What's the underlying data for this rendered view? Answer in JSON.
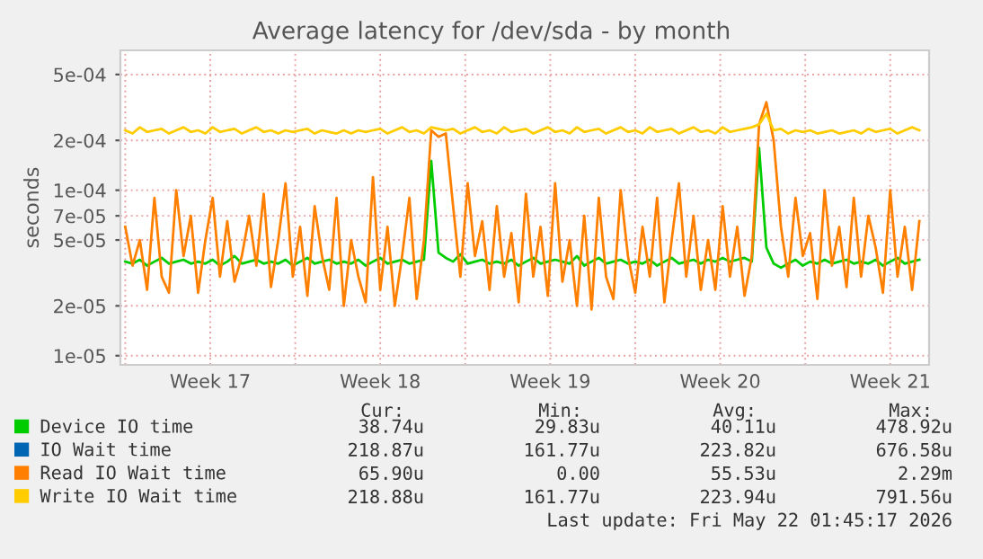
{
  "chart_data": {
    "type": "line",
    "title": "Average latency for /dev/sda - by month",
    "ylabel": "seconds",
    "log": "y",
    "grid": true,
    "legend": "bottom",
    "marker": "none",
    "line_style": "solid",
    "xlim": [
      "2026-04-19T19:12",
      "2026-05-23T02:24"
    ],
    "ylim": [
      8.8e-06,
      0.0007
    ],
    "xticks": [
      {
        "value": "2026-04-20",
        "label": null
      },
      {
        "value": "2026-04-23T12:00",
        "label": "Week 17"
      },
      {
        "value": "2026-04-27",
        "label": null
      },
      {
        "value": "2026-04-30T12:00",
        "label": "Week 18"
      },
      {
        "value": "2026-05-04",
        "label": null
      },
      {
        "value": "2026-05-07T12:00",
        "label": "Week 19"
      },
      {
        "value": "2026-05-11",
        "label": null
      },
      {
        "value": "2026-05-14T12:00",
        "label": "Week 20"
      },
      {
        "value": "2026-05-18",
        "label": null
      },
      {
        "value": "2026-05-21T12:00",
        "label": "Week 21"
      }
    ],
    "yticks": [
      {
        "value": 1e-05,
        "label": "1e-05"
      },
      {
        "value": 2e-05,
        "label": "2e-05"
      },
      {
        "value": 5e-05,
        "label": "5e-05"
      },
      {
        "value": 7e-05,
        "label": "7e-05"
      },
      {
        "value": 0.0001,
        "label": "1e-04"
      },
      {
        "value": 0.0002,
        "label": "2e-04"
      },
      {
        "value": 0.0005,
        "label": "5e-04"
      }
    ],
    "x": [
      "2026-04-20T00:00",
      "2026-04-20T07:12",
      "2026-04-20T14:24",
      "2026-04-20T21:36",
      "2026-04-21T04:48",
      "2026-04-21T12:00",
      "2026-04-21T19:12",
      "2026-04-22T02:24",
      "2026-04-22T09:36",
      "2026-04-22T16:48",
      "2026-04-23T00:00",
      "2026-04-23T07:12",
      "2026-04-23T14:24",
      "2026-04-23T21:36",
      "2026-04-24T04:48",
      "2026-04-24T12:00",
      "2026-04-24T19:12",
      "2026-04-25T02:24",
      "2026-04-25T09:36",
      "2026-04-25T16:48",
      "2026-04-26T00:00",
      "2026-04-26T07:12",
      "2026-04-26T14:24",
      "2026-04-26T21:36",
      "2026-04-27T04:48",
      "2026-04-27T12:00",
      "2026-04-27T19:12",
      "2026-04-28T02:24",
      "2026-04-28T09:36",
      "2026-04-28T16:48",
      "2026-04-29T00:00",
      "2026-04-29T07:12",
      "2026-04-29T14:24",
      "2026-04-29T21:36",
      "2026-04-30T04:48",
      "2026-04-30T12:00",
      "2026-04-30T19:12",
      "2026-05-01T02:24",
      "2026-05-01T09:36",
      "2026-05-01T16:48",
      "2026-05-02T00:00",
      "2026-05-02T07:12",
      "2026-05-02T14:24",
      "2026-05-02T21:36",
      "2026-05-03T04:48",
      "2026-05-03T12:00",
      "2026-05-03T19:12",
      "2026-05-04T02:24",
      "2026-05-04T09:36",
      "2026-05-04T16:48",
      "2026-05-05T00:00",
      "2026-05-05T07:12",
      "2026-05-05T14:24",
      "2026-05-05T21:36",
      "2026-05-06T04:48",
      "2026-05-06T12:00",
      "2026-05-06T19:12",
      "2026-05-07T02:24",
      "2026-05-07T09:36",
      "2026-05-07T16:48",
      "2026-05-08T00:00",
      "2026-05-08T07:12",
      "2026-05-08T14:24",
      "2026-05-08T21:36",
      "2026-05-09T04:48",
      "2026-05-09T12:00",
      "2026-05-09T19:12",
      "2026-05-10T02:24",
      "2026-05-10T09:36",
      "2026-05-10T16:48",
      "2026-05-11T00:00",
      "2026-05-11T07:12",
      "2026-05-11T14:24",
      "2026-05-11T21:36",
      "2026-05-12T04:48",
      "2026-05-12T12:00",
      "2026-05-12T19:12",
      "2026-05-13T02:24",
      "2026-05-13T09:36",
      "2026-05-13T16:48",
      "2026-05-14T00:00",
      "2026-05-14T07:12",
      "2026-05-14T14:24",
      "2026-05-14T21:36",
      "2026-05-15T04:48",
      "2026-05-15T12:00",
      "2026-05-15T19:12",
      "2026-05-16T02:24",
      "2026-05-16T09:36",
      "2026-05-16T16:48",
      "2026-05-17T00:00",
      "2026-05-17T07:12",
      "2026-05-17T14:24",
      "2026-05-17T21:36",
      "2026-05-18T04:48",
      "2026-05-18T12:00",
      "2026-05-18T19:12",
      "2026-05-19T02:24",
      "2026-05-19T09:36",
      "2026-05-19T16:48",
      "2026-05-20T00:00",
      "2026-05-20T07:12",
      "2026-05-20T14:24",
      "2026-05-20T21:36",
      "2026-05-21T04:48",
      "2026-05-21T12:00",
      "2026-05-21T19:12",
      "2026-05-22T02:24",
      "2026-05-22T09:36",
      "2026-05-22T16:48"
    ],
    "series": [
      {
        "name": "Device IO time",
        "color": "#00cc00",
        "values": [
          3.7e-05,
          3.6e-05,
          3.8e-05,
          3.5e-05,
          3.7e-05,
          3.9e-05,
          3.6e-05,
          3.7e-05,
          3.8e-05,
          3.6e-05,
          3.7e-05,
          3.6e-05,
          3.8e-05,
          3.5e-05,
          3.7e-05,
          4e-05,
          3.6e-05,
          3.7e-05,
          3.8e-05,
          3.6e-05,
          3.7e-05,
          3.6e-05,
          3.8e-05,
          3.5e-05,
          3.7e-05,
          3.9e-05,
          3.6e-05,
          3.7e-05,
          3.8e-05,
          3.6e-05,
          3.7e-05,
          3.6e-05,
          3.8e-05,
          3.5e-05,
          3.7e-05,
          3.9e-05,
          3.6e-05,
          3.7e-05,
          3.8e-05,
          3.6e-05,
          3.7e-05,
          3.8e-05,
          0.00015,
          4.2e-05,
          3.9e-05,
          3.7e-05,
          4.1e-05,
          3.6e-05,
          3.7e-05,
          3.8e-05,
          3.6e-05,
          3.7e-05,
          3.6e-05,
          3.8e-05,
          3.5e-05,
          3.7e-05,
          3.9e-05,
          3.6e-05,
          3.7e-05,
          3.8e-05,
          3.7e-05,
          3.6e-05,
          4e-05,
          3.5e-05,
          3.7e-05,
          3.9e-05,
          3.6e-05,
          3.7e-05,
          3.8e-05,
          3.6e-05,
          3.7e-05,
          3.6e-05,
          3.8e-05,
          3.5e-05,
          3.7e-05,
          3.9e-05,
          3.6e-05,
          3.7e-05,
          3.8e-05,
          3.6e-05,
          3.8e-05,
          3.7e-05,
          3.9e-05,
          3.7e-05,
          3.8e-05,
          3.9e-05,
          3.7e-05,
          0.00018,
          4.5e-05,
          3.6e-05,
          3.4e-05,
          3.6e-05,
          3.8e-05,
          3.5e-05,
          3.7e-05,
          3.6e-05,
          3.8e-05,
          3.6e-05,
          3.7e-05,
          3.8e-05,
          3.6e-05,
          3.7e-05,
          3.6e-05,
          3.8e-05,
          3.5e-05,
          3.7e-05,
          3.9e-05,
          3.6e-05,
          3.7e-05,
          3.8e-05
        ]
      },
      {
        "name": "IO Wait time",
        "color": "#0066b3",
        "values": [
          null,
          null,
          null,
          null,
          null,
          null,
          null,
          null,
          null,
          null,
          null,
          null,
          null,
          null,
          null,
          null,
          null,
          null,
          null,
          null,
          null,
          null,
          null,
          null,
          null,
          null,
          null,
          null,
          null,
          null,
          null,
          null,
          null,
          null,
          null,
          null,
          null,
          null,
          null,
          null,
          null,
          null,
          null,
          null,
          null,
          null,
          null,
          null,
          null,
          null,
          null,
          null,
          null,
          null,
          null,
          null,
          null,
          null,
          null,
          null,
          null,
          null,
          null,
          null,
          null,
          null,
          null,
          null,
          null,
          null,
          null,
          null,
          null,
          null,
          null,
          null,
          null,
          null,
          null,
          null,
          null,
          null,
          null,
          null,
          null,
          null,
          null,
          null,
          null,
          null,
          null,
          null,
          null,
          null,
          null,
          null,
          null,
          null,
          null,
          null,
          null,
          null,
          null,
          null,
          null,
          null,
          null,
          null,
          null,
          null
        ]
      },
      {
        "name": "Read IO Wait time",
        "color": "#ff8000",
        "values": [
          6e-05,
          3.5e-05,
          5e-05,
          2.5e-05,
          9e-05,
          3e-05,
          2.4e-05,
          0.0001,
          4e-05,
          7e-05,
          2.4e-05,
          5e-05,
          9e-05,
          3e-05,
          6.5e-05,
          2.8e-05,
          4e-05,
          7e-05,
          3.5e-05,
          9.5e-05,
          2.6e-05,
          5e-05,
          0.00011,
          3e-05,
          6e-05,
          2.3e-05,
          8e-05,
          4e-05,
          2.5e-05,
          9e-05,
          2e-05,
          5e-05,
          3e-05,
          2.1e-05,
          0.00012,
          2.5e-05,
          6e-05,
          2e-05,
          4e-05,
          9e-05,
          2.2e-05,
          5e-05,
          0.00023,
          0.00021,
          0.00022,
          8e-05,
          3e-05,
          0.00011,
          4e-05,
          6.5e-05,
          2.5e-05,
          8e-05,
          3e-05,
          5.5e-05,
          2.1e-05,
          9.5e-05,
          3e-05,
          6e-05,
          2.3e-05,
          0.00011,
          2.8e-05,
          5e-05,
          2e-05,
          7e-05,
          1.9e-05,
          9e-05,
          3e-05,
          2.2e-05,
          0.0001,
          4e-05,
          2.4e-05,
          6e-05,
          3e-05,
          9e-05,
          2.1e-05,
          5e-05,
          0.00011,
          3e-05,
          7e-05,
          2.5e-05,
          5e-05,
          2.5e-05,
          8e-05,
          3e-05,
          6e-05,
          2.3e-05,
          4e-05,
          0.00025,
          0.00034,
          0.0002,
          6e-05,
          3e-05,
          9e-05,
          4e-05,
          5.5e-05,
          2.2e-05,
          0.0001,
          3.5e-05,
          6e-05,
          2.6e-05,
          9e-05,
          3e-05,
          7e-05,
          4.5e-05,
          2.4e-05,
          0.0001,
          3e-05,
          6e-05,
          2.5e-05,
          6.5e-05
        ]
      },
      {
        "name": "Write IO Wait time",
        "color": "#ffcc00",
        "values": [
          0.00023,
          0.00022,
          0.00024,
          0.000225,
          0.00023,
          0.000235,
          0.00022,
          0.00023,
          0.00024,
          0.000225,
          0.00023,
          0.00022,
          0.00024,
          0.000225,
          0.00023,
          0.000235,
          0.00022,
          0.00023,
          0.00024,
          0.000225,
          0.00023,
          0.00022,
          0.00023,
          0.000225,
          0.00023,
          0.000235,
          0.00022,
          0.00023,
          0.000225,
          0.00022,
          0.00023,
          0.00022,
          0.00023,
          0.000225,
          0.00023,
          0.000235,
          0.00022,
          0.00023,
          0.00024,
          0.000225,
          0.00023,
          0.00022,
          0.00024,
          0.000235,
          0.00023,
          0.000235,
          0.00022,
          0.00023,
          0.00024,
          0.000225,
          0.00023,
          0.00022,
          0.00024,
          0.000225,
          0.00023,
          0.000235,
          0.00022,
          0.00023,
          0.00024,
          0.000225,
          0.00023,
          0.00022,
          0.00024,
          0.000225,
          0.00023,
          0.000235,
          0.00022,
          0.00023,
          0.00024,
          0.000225,
          0.00023,
          0.00022,
          0.00024,
          0.000225,
          0.00023,
          0.000235,
          0.00022,
          0.00023,
          0.00024,
          0.000225,
          0.00023,
          0.00022,
          0.00024,
          0.000225,
          0.00023,
          0.000235,
          0.00024,
          0.00025,
          0.00029,
          0.00023,
          0.000235,
          0.00022,
          0.00023,
          0.000225,
          0.00023,
          0.00022,
          0.000225,
          0.00023,
          0.00022,
          0.000225,
          0.00023,
          0.00022,
          0.000235,
          0.000225,
          0.00023,
          0.000235,
          0.00022,
          0.00023,
          0.00024,
          0.00023
        ]
      }
    ],
    "annotations": [
      "Cur:",
      "Min:",
      "Avg:",
      "Max:",
      "38.74u",
      "29.83u",
      "40.11u",
      "478.92u",
      "218.87u",
      "161.77u",
      "223.82u",
      "676.58u",
      "65.90u",
      "0.00",
      "55.53u",
      "2.29m",
      "218.88u",
      "161.77u",
      "223.94u",
      "791.56u",
      "Last update: Fri May 22 01:45:17 2026"
    ]
  }
}
